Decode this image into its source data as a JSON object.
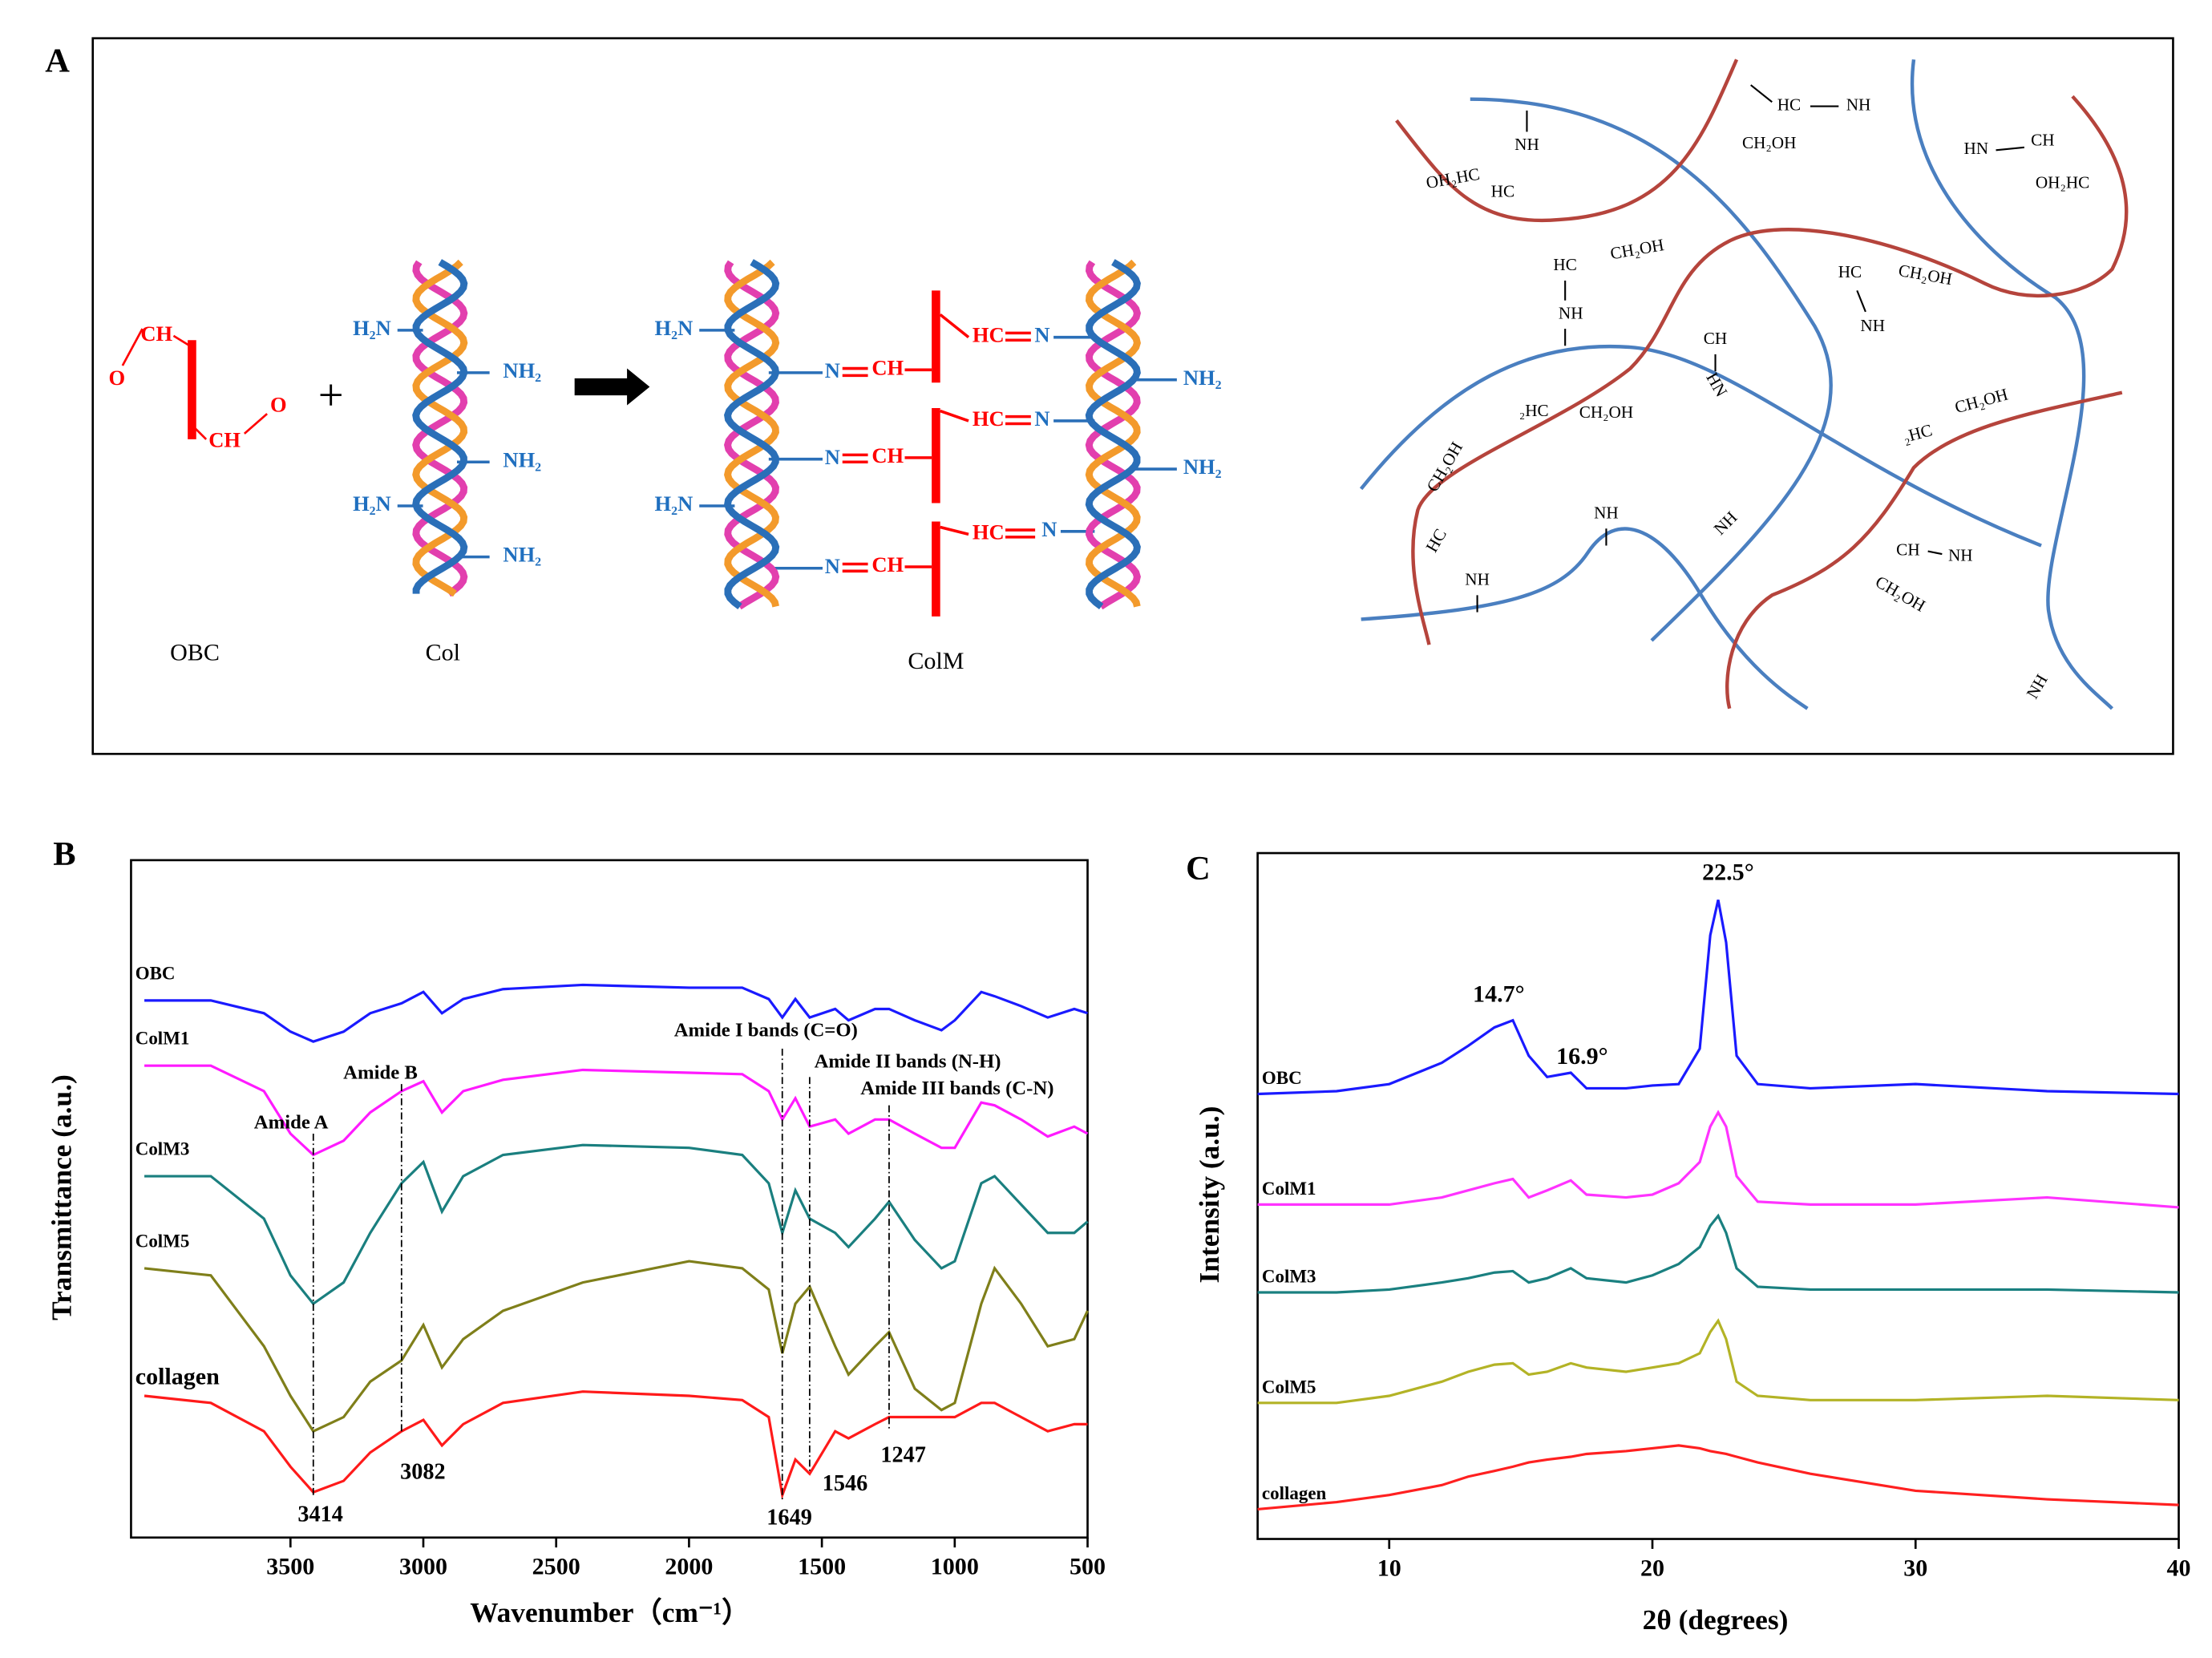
{
  "panel_a": {
    "label": "A",
    "plus": "+",
    "obc_labels": [
      "CH",
      "O",
      "CH",
      "O"
    ],
    "col_labels": [
      "H₂N",
      "NH₂",
      "NH₂",
      "H₂N",
      "NH₂"
    ],
    "colm_labels": [
      "H₂N",
      "H₂N",
      "N",
      "CH",
      "N",
      "CH",
      "N",
      "CH",
      "HC",
      "N",
      "HC",
      "N",
      "HC",
      "N",
      "NH₂",
      "NH₂"
    ],
    "captions": [
      "OBC",
      "Col",
      "ColM"
    ],
    "network_labels": [
      "NH",
      "OH₂HC",
      "HC",
      "HC",
      "NH",
      "CH₂OH",
      "HN",
      "CH",
      "OH₂HC",
      "HC",
      "CH₂OH",
      "HC",
      "CH₂OH",
      "NH",
      "NH",
      "CH",
      "HN",
      "₂HC",
      "CH₂OH",
      "CH₂OH",
      "₂HC",
      "CH₂OH",
      "HC",
      "NH",
      "NH",
      "NH",
      "CH",
      "NH",
      "CH₂OH",
      "NH"
    ]
  },
  "chart_data": [
    {
      "type": "line",
      "panel": "B",
      "xlabel": "Wavenumber（cm⁻¹）",
      "ylabel": "Transmittance (a.u.)",
      "xlim": [
        4100,
        500
      ],
      "ylim": [
        0,
        478
      ],
      "xticks": [
        3500,
        3000,
        2500,
        2000,
        1500,
        1000,
        500
      ],
      "x": [
        4050,
        3800,
        3600,
        3500,
        3414,
        3300,
        3200,
        3082,
        3000,
        2930,
        2850,
        2700,
        2400,
        2000,
        1800,
        1700,
        1649,
        1600,
        1546,
        1450,
        1400,
        1300,
        1247,
        1150,
        1050,
        1000,
        900,
        850,
        750,
        650,
        550,
        500
      ],
      "series": [
        {
          "name": "OBC",
          "color": "#1a1aff",
          "values": [
            379,
            379,
            370,
            357,
            350,
            357,
            370,
            377,
            385,
            370,
            380,
            387,
            390,
            388,
            388,
            380,
            367,
            380,
            367,
            373,
            365,
            373,
            373,
            365,
            358,
            365,
            385,
            382,
            375,
            367,
            373,
            370
          ]
        },
        {
          "name": "ColM1",
          "color": "#ff1aff",
          "values": [
            333,
            333,
            315,
            285,
            270,
            280,
            300,
            315,
            322,
            300,
            315,
            323,
            330,
            328,
            327,
            315,
            295,
            310,
            290,
            295,
            285,
            295,
            295,
            285,
            275,
            275,
            307,
            305,
            295,
            283,
            290,
            285
          ]
        },
        {
          "name": "ColM3",
          "color": "#1a7f7f",
          "values": [
            255,
            255,
            225,
            185,
            165,
            180,
            215,
            250,
            265,
            230,
            255,
            270,
            277,
            275,
            270,
            250,
            215,
            245,
            225,
            215,
            205,
            225,
            237,
            210,
            190,
            195,
            250,
            255,
            235,
            215,
            215,
            223
          ]
        },
        {
          "name": "ColM5",
          "color": "#7f7f1a",
          "values": [
            190,
            185,
            135,
            100,
            75,
            85,
            110,
            125,
            150,
            120,
            140,
            160,
            180,
            195,
            190,
            175,
            130,
            165,
            177,
            135,
            115,
            135,
            145,
            105,
            90,
            95,
            165,
            190,
            165,
            135,
            140,
            160
          ]
        },
        {
          "name": "collagen",
          "color": "#ff1a1a",
          "values": [
            100,
            95,
            75,
            50,
            32,
            40,
            60,
            75,
            83,
            65,
            80,
            95,
            103,
            100,
            97,
            85,
            30,
            55,
            45,
            75,
            70,
            80,
            85,
            85,
            85,
            85,
            95,
            95,
            85,
            75,
            80,
            80
          ]
        }
      ],
      "annotations": [
        "Amide A",
        "Amide B",
        "Amide I bands (C=O)",
        "Amide II bands (N-H)",
        "Amide III bands (C-N)"
      ],
      "peaks": [
        3414,
        3082,
        1649,
        1546,
        1247
      ]
    },
    {
      "type": "line",
      "panel": "C",
      "xlabel": "2θ (degrees)",
      "ylabel": "Intensity (a.u.)",
      "xlim": [
        5,
        40
      ],
      "ylim": [
        0,
        484
      ],
      "xticks": [
        10,
        20,
        30,
        40
      ],
      "x": [
        5,
        8,
        10,
        12,
        13,
        14,
        14.7,
        15.3,
        16,
        16.9,
        17.5,
        19,
        20,
        21,
        21.8,
        22.2,
        22.5,
        22.8,
        23.2,
        24,
        26,
        30,
        35,
        40
      ],
      "series": [
        {
          "name": "OBC",
          "color": "#1a1aff",
          "values": [
            314,
            316,
            321,
            336,
            348,
            361,
            366,
            341,
            326,
            329,
            318,
            318,
            320,
            321,
            346,
            426,
            451,
            421,
            341,
            321,
            318,
            321,
            316,
            314
          ]
        },
        {
          "name": "ColM1",
          "color": "#ff33ff",
          "values": [
            236,
            236,
            236,
            241,
            246,
            251,
            254,
            241,
            246,
            253,
            243,
            241,
            243,
            251,
            266,
            291,
            301,
            291,
            256,
            238,
            236,
            236,
            241,
            234
          ]
        },
        {
          "name": "ColM3",
          "color": "#1a8080",
          "values": [
            174,
            174,
            176,
            181,
            184,
            188,
            189,
            181,
            184,
            191,
            184,
            181,
            186,
            194,
            206,
            221,
            228,
            216,
            191,
            178,
            176,
            176,
            176,
            174
          ]
        },
        {
          "name": "ColM5",
          "color": "#b3b326",
          "values": [
            96,
            96,
            101,
            111,
            118,
            123,
            124,
            116,
            118,
            124,
            121,
            118,
            121,
            124,
            131,
            146,
            154,
            141,
            111,
            101,
            98,
            98,
            101,
            98
          ]
        },
        {
          "name": "collagen",
          "color": "#ff2020",
          "values": [
            21,
            26,
            31,
            38,
            44,
            48,
            51,
            54,
            56,
            58,
            60,
            62,
            64,
            66,
            64,
            62,
            61,
            60,
            58,
            54,
            46,
            34,
            28,
            24
          ]
        }
      ],
      "peaks": [
        {
          "value": 14.7,
          "label": "14.7°"
        },
        {
          "value": 16.9,
          "label": "16.9°"
        },
        {
          "value": 22.5,
          "label": "22.5°"
        }
      ]
    }
  ]
}
